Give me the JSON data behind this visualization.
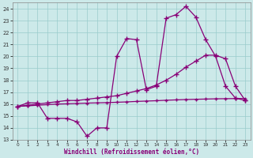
{
  "xlabel": "Windchill (Refroidissement éolien,°C)",
  "xlim": [
    -0.5,
    23.5
  ],
  "ylim": [
    13,
    24.5
  ],
  "yticks": [
    13,
    14,
    15,
    16,
    17,
    18,
    19,
    20,
    21,
    22,
    23,
    24
  ],
  "xticks": [
    0,
    1,
    2,
    3,
    4,
    5,
    6,
    7,
    8,
    9,
    10,
    11,
    12,
    13,
    14,
    15,
    16,
    17,
    18,
    19,
    20,
    21,
    22,
    23
  ],
  "background_color": "#cce9e9",
  "grid_color": "#99cccc",
  "line_color": "#880077",
  "series": [
    {
      "x": [
        0,
        1,
        2,
        3,
        4,
        5,
        6,
        7,
        8,
        9,
        10,
        11,
        12,
        13,
        14,
        15,
        16,
        17,
        18,
        19,
        20,
        21,
        22,
        23
      ],
      "y": [
        15.8,
        16.1,
        16.1,
        14.8,
        14.8,
        14.8,
        14.5,
        13.3,
        14.0,
        14.0,
        20.0,
        21.5,
        21.4,
        17.2,
        17.5,
        23.2,
        23.5,
        24.2,
        23.3,
        21.4,
        20.0,
        17.5,
        16.5,
        16.3
      ],
      "marker": "+",
      "markersize": 4,
      "linewidth": 0.9
    },
    {
      "x": [
        0,
        1,
        2,
        3,
        4,
        5,
        6,
        7,
        8,
        9,
        10,
        11,
        12,
        13,
        14,
        15,
        16,
        17,
        18,
        19,
        20,
        21,
        22,
        23
      ],
      "y": [
        15.8,
        15.9,
        16.0,
        16.1,
        16.2,
        16.3,
        16.3,
        16.4,
        16.5,
        16.6,
        16.7,
        16.9,
        17.1,
        17.3,
        17.6,
        18.0,
        18.5,
        19.1,
        19.6,
        20.1,
        20.1,
        19.8,
        17.5,
        16.3
      ],
      "marker": "+",
      "markersize": 4,
      "linewidth": 0.9
    },
    {
      "x": [
        0,
        1,
        2,
        3,
        4,
        5,
        6,
        7,
        8,
        9,
        10,
        11,
        12,
        13,
        14,
        15,
        16,
        17,
        18,
        19,
        20,
        21,
        22,
        23
      ],
      "y": [
        15.8,
        15.85,
        15.9,
        15.95,
        16.0,
        16.02,
        16.05,
        16.08,
        16.1,
        16.12,
        16.15,
        16.18,
        16.22,
        16.25,
        16.28,
        16.32,
        16.35,
        16.38,
        16.4,
        16.42,
        16.44,
        16.45,
        16.46,
        16.47
      ],
      "marker": "+",
      "markersize": 3,
      "linewidth": 0.9
    }
  ]
}
